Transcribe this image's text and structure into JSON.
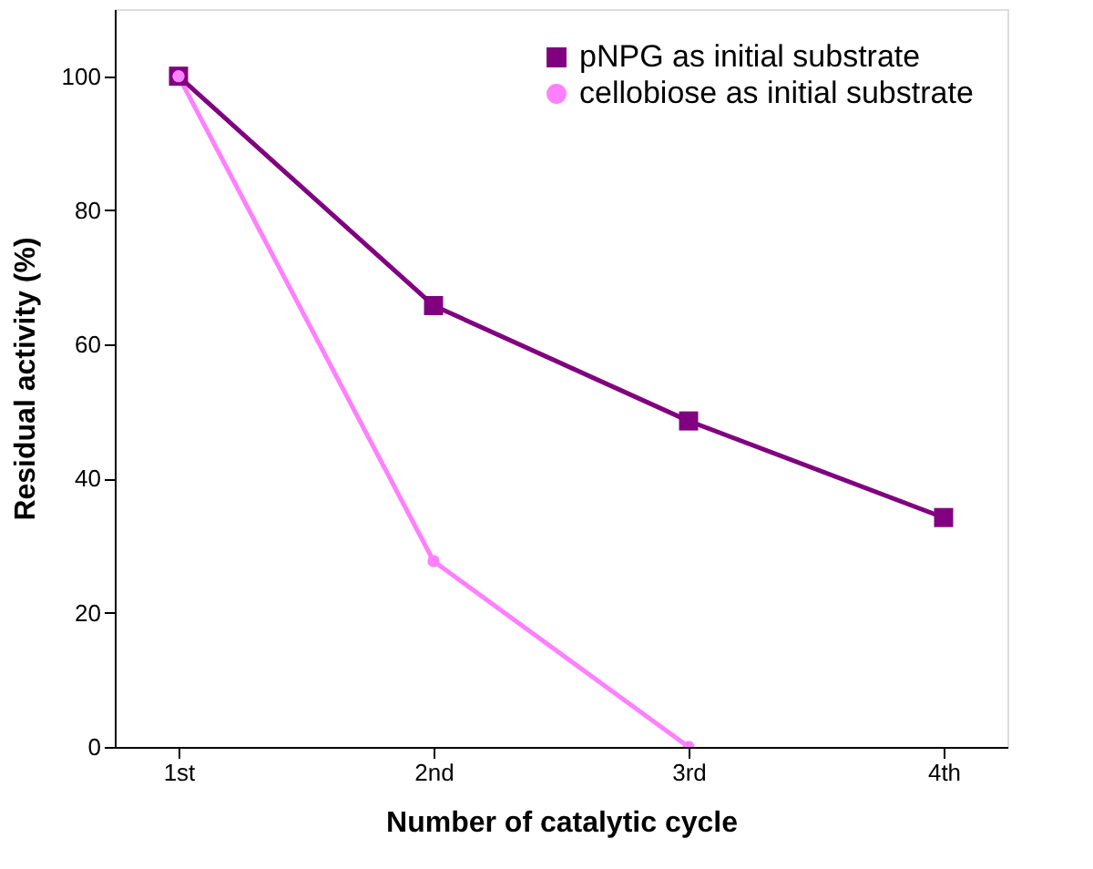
{
  "chart_data": {
    "type": "line",
    "xlabel": "Number of catalytic cycle",
    "ylabel": "Residual activity (%)",
    "categories": [
      "1st",
      "2nd",
      "3rd",
      "4th"
    ],
    "series": [
      {
        "name": "pNPG as initial substrate",
        "color": "#800080",
        "marker": "square",
        "values": [
          100,
          65.8,
          48.6,
          34.2
        ]
      },
      {
        "name": "cellobiose as initial substrate",
        "color": "#ff80ff",
        "marker": "circle",
        "values": [
          100,
          27.7,
          0,
          null
        ]
      }
    ],
    "ylim": [
      0,
      110
    ],
    "yticks": [
      0,
      20,
      40,
      60,
      80,
      100
    ],
    "grid": false,
    "legend": "top right",
    "line_style": "solid"
  }
}
